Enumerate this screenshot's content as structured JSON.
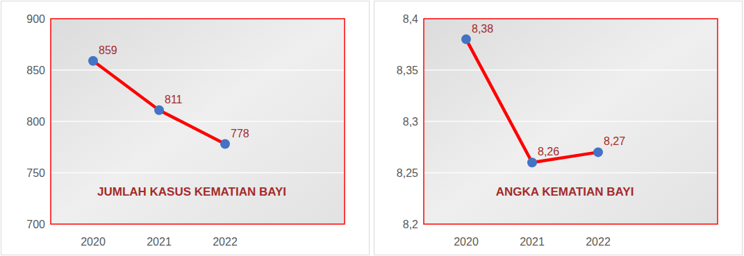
{
  "chart_data": [
    {
      "type": "line",
      "title": "JUMLAH KASUS KEMATIAN BAYI",
      "categories": [
        "2020",
        "2021",
        "2022"
      ],
      "values": [
        859,
        811,
        778
      ],
      "color": "#ff0000",
      "marker": "circle",
      "ylim": [
        700,
        900
      ],
      "yticks": [
        700,
        750,
        800,
        850,
        900
      ],
      "grid": true,
      "data_labels": true
    },
    {
      "type": "line",
      "title": "ANGKA KEMATIAN BAYI",
      "categories": [
        "2020",
        "2021",
        "2022"
      ],
      "values": [
        8.38,
        8.26,
        8.27
      ],
      "value_labels": [
        "8,38",
        "8,26",
        "8,27"
      ],
      "color": "#ff0000",
      "marker": "circle",
      "ylim": [
        8.2,
        8.4
      ],
      "yticks": [
        {
          "value": 8.2,
          "label": "8,2"
        },
        {
          "value": 8.25,
          "label": "8,25"
        },
        {
          "value": 8.3,
          "label": "8,3"
        },
        {
          "value": 8.35,
          "label": "8,35"
        },
        {
          "value": 8.4,
          "label": "8,4"
        }
      ],
      "grid": true,
      "data_labels": true
    }
  ]
}
